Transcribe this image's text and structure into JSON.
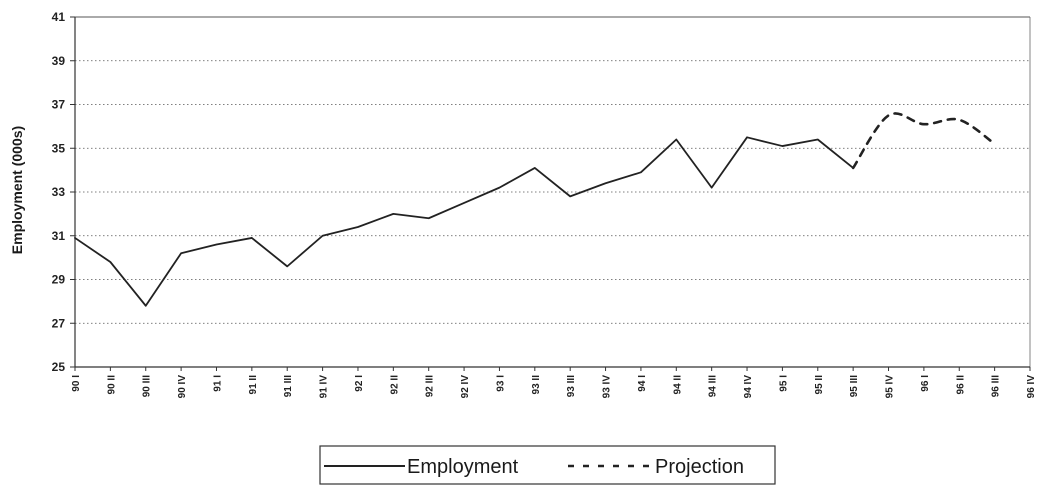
{
  "chart_data": {
    "type": "line",
    "title": "",
    "xlabel": "",
    "ylabel": "Employment (000s)",
    "ylim": [
      25,
      41
    ],
    "yticks": [
      25,
      27,
      29,
      31,
      33,
      35,
      37,
      39,
      41
    ],
    "grid": true,
    "legend_position": "bottom-center",
    "categories": [
      "90 I",
      "90 II",
      "90 III",
      "90 IV",
      "91 I",
      "91 II",
      "91 III",
      "91 IV",
      "92 I",
      "92 II",
      "92 III",
      "92 IV",
      "93 I",
      "93 II",
      "93 III",
      "93 IV",
      "94 I",
      "94 II",
      "94 III",
      "94 IV",
      "95 I",
      "95 II",
      "95 III",
      "95 IV",
      "96 I",
      "96 II",
      "96 III",
      "96 IV"
    ],
    "series": [
      {
        "name": "Employment",
        "style": "solid",
        "color": "#222222",
        "values": [
          30.9,
          29.8,
          27.8,
          30.2,
          30.6,
          30.9,
          29.6,
          31.0,
          31.4,
          32.0,
          31.8,
          32.5,
          33.2,
          34.1,
          32.8,
          33.4,
          33.9,
          35.4,
          33.2,
          35.5,
          35.1,
          35.4,
          34.1,
          null,
          null,
          null,
          null,
          null
        ]
      },
      {
        "name": "Projection",
        "style": "dashed",
        "color": "#222222",
        "values": [
          null,
          null,
          null,
          null,
          null,
          null,
          null,
          null,
          null,
          null,
          null,
          null,
          null,
          null,
          null,
          null,
          null,
          null,
          null,
          null,
          null,
          null,
          34.1,
          36.5,
          36.1,
          36.3,
          35.2,
          null
        ]
      }
    ]
  }
}
